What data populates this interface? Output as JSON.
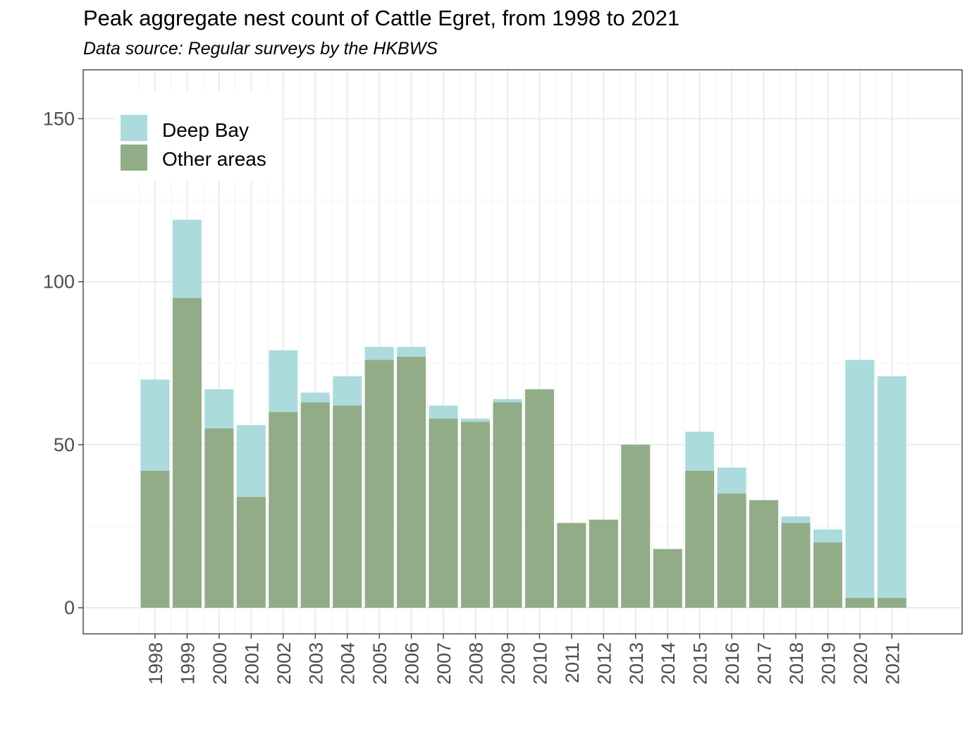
{
  "chart_data": {
    "type": "bar",
    "stacked": false,
    "overlaid": true,
    "title": "Peak aggregate nest count of Cattle Egret, from 1998 to 2021",
    "subtitle": "Data source: Regular surveys by the HKBWS",
    "xlabel": "",
    "ylabel": "",
    "ylim": [
      -8,
      165
    ],
    "yticks": [
      0,
      50,
      100,
      150
    ],
    "grid": true,
    "legend_position": "top-left",
    "categories": [
      "1998",
      "1999",
      "2000",
      "2001",
      "2002",
      "2003",
      "2004",
      "2005",
      "2006",
      "2007",
      "2008",
      "2009",
      "2010",
      "2011",
      "2012",
      "2013",
      "2014",
      "2015",
      "2016",
      "2017",
      "2018",
      "2019",
      "2020",
      "2021"
    ],
    "series": [
      {
        "name": "Deep Bay",
        "color": "#abdbdc",
        "values": [
          70,
          119,
          67,
          56,
          79,
          66,
          71,
          80,
          80,
          62,
          58,
          64,
          67,
          26,
          27,
          50,
          18,
          54,
          43,
          33,
          28,
          24,
          76,
          71
        ]
      },
      {
        "name": "Other areas",
        "color": "#93ac88",
        "values": [
          42,
          95,
          55,
          34,
          60,
          63,
          62,
          76,
          77,
          58,
          57,
          63,
          67,
          26,
          27,
          50,
          18,
          42,
          35,
          33,
          26,
          20,
          3,
          3
        ]
      }
    ]
  }
}
